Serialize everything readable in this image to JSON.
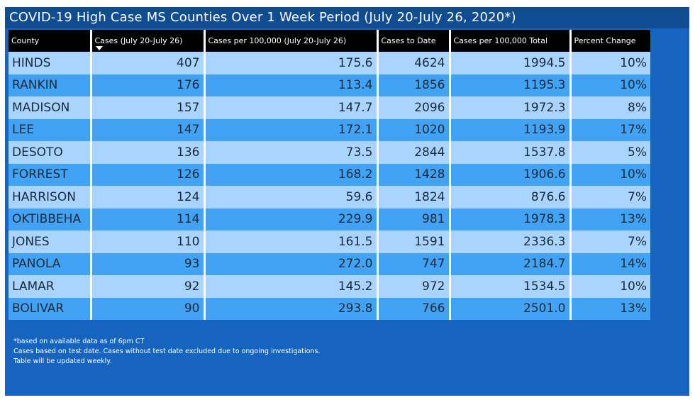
{
  "title": "COVID-19 High Case MS Counties Over 1 Week Period (July 20-July 26, 2020*)",
  "columns": [
    "County",
    "Cases (July 20-July 26)",
    "Cases per 100,000 (July 20-July 26)",
    "Cases to Date",
    "Cases per 100,000 Total",
    "Percent Change"
  ],
  "sort_icon": "sort-descending-icon",
  "rows": [
    [
      "HINDS",
      "407",
      "175.6",
      "4624",
      "1994.5",
      "10%"
    ],
    [
      "RANKIN",
      "176",
      "113.4",
      "1856",
      "1195.3",
      "10%"
    ],
    [
      "MADISON",
      "157",
      "147.7",
      "2096",
      "1972.3",
      "8%"
    ],
    [
      "LEE",
      "147",
      "172.1",
      "1020",
      "1193.9",
      "17%"
    ],
    [
      "DESOTO",
      "136",
      "73.5",
      "2844",
      "1537.8",
      "5%"
    ],
    [
      "FORREST",
      "126",
      "168.2",
      "1428",
      "1906.6",
      "10%"
    ],
    [
      "HARRISON",
      "124",
      "59.6",
      "1824",
      "876.6",
      "7%"
    ],
    [
      "OKTIBBEHA",
      "114",
      "229.9",
      "981",
      "1978.3",
      "13%"
    ],
    [
      "JONES",
      "110",
      "161.5",
      "1591",
      "2336.3",
      "7%"
    ],
    [
      "PANOLA",
      "93",
      "272.0",
      "747",
      "2184.7",
      "14%"
    ],
    [
      "LAMAR",
      "92",
      "145.2",
      "972",
      "1534.5",
      "10%"
    ],
    [
      "BOLIVAR",
      "90",
      "293.8",
      "766",
      "2501.0",
      "13%"
    ]
  ],
  "notes": [
    "*based on available data as of 6pm CT",
    "Cases based on test date. Cases without test date excluded due to ongoing investigations.",
    "Table will be updated weekly."
  ],
  "colors": {
    "panel": "#1565c0",
    "title_bar": "#0f4c91",
    "header": "#000000",
    "row_light": "#a8d4ff",
    "row_dark": "#42a2f4"
  }
}
